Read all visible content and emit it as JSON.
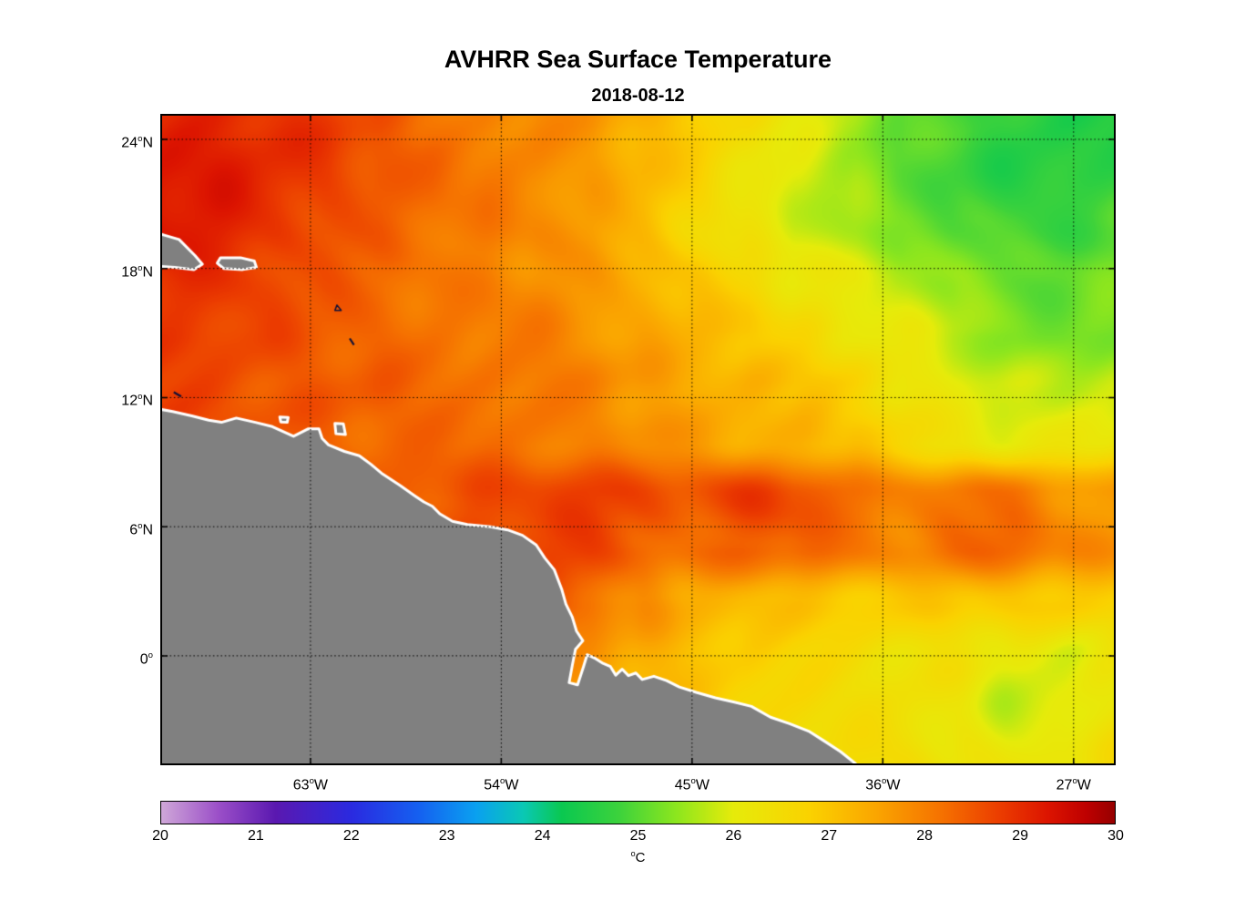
{
  "chart_data": {
    "type": "heatmap",
    "title": "AVHRR Sea Surface Temperature",
    "subtitle": "2018-08-12",
    "deg_symbol": "o",
    "x_axis": {
      "range": [
        -70,
        -25.1
      ],
      "ticks": [
        {
          "lon": -63,
          "value": "63",
          "hemi": "W"
        },
        {
          "lon": -54,
          "value": "54",
          "hemi": "W"
        },
        {
          "lon": -45,
          "value": "45",
          "hemi": "W"
        },
        {
          "lon": -36,
          "value": "36",
          "hemi": "W"
        },
        {
          "lon": -27,
          "value": "27",
          "hemi": "W"
        }
      ]
    },
    "y_axis": {
      "range": [
        -5,
        25.1
      ],
      "ticks": [
        {
          "lat": 24,
          "value": "24",
          "hemi": "N"
        },
        {
          "lat": 18,
          "value": "18",
          "hemi": "N"
        },
        {
          "lat": 12,
          "value": "12",
          "hemi": "N"
        },
        {
          "lat": 6,
          "value": "6",
          "hemi": "N"
        },
        {
          "lat": 0,
          "value": "0",
          "hemi": ""
        }
      ]
    },
    "grid": {
      "style": "dotted",
      "color": "#000000"
    },
    "colorbar": {
      "min": 20,
      "max": 30,
      "ticks": [
        20,
        21,
        22,
        23,
        24,
        25,
        26,
        27,
        28,
        29,
        30
      ],
      "unit_sup": "o",
      "unit_main": "C",
      "stops": [
        [
          20.0,
          "#cfa7d8"
        ],
        [
          20.6,
          "#9b4fc8"
        ],
        [
          21.2,
          "#5a18b0"
        ],
        [
          22.0,
          "#2a2ae0"
        ],
        [
          22.7,
          "#1560f0"
        ],
        [
          23.3,
          "#0aa0f0"
        ],
        [
          23.8,
          "#0ac8b4"
        ],
        [
          24.2,
          "#0ac850"
        ],
        [
          24.8,
          "#3cd23c"
        ],
        [
          25.4,
          "#8ce61e"
        ],
        [
          26.0,
          "#e6eb0a"
        ],
        [
          26.8,
          "#fad200"
        ],
        [
          27.5,
          "#faa500"
        ],
        [
          28.2,
          "#f57000"
        ],
        [
          28.8,
          "#eb3c00"
        ],
        [
          29.3,
          "#dc1400"
        ],
        [
          29.7,
          "#be0000"
        ],
        [
          30.0,
          "#960000"
        ]
      ]
    },
    "sst_grid": {
      "lons": [
        -70,
        -67.5,
        -65,
        -62.5,
        -60,
        -57.5,
        -55,
        -52.5,
        -50,
        -47.5,
        -45,
        -42.5,
        -40,
        -37.5,
        -35,
        -32.5,
        -30,
        -27.5,
        -25
      ],
      "lats": [
        25,
        22.5,
        20,
        17.5,
        15,
        12.5,
        10,
        7.5,
        5,
        2.5,
        0,
        -2.5,
        -5
      ],
      "values": [
        [
          29.0,
          29.0,
          28.9,
          28.8,
          28.5,
          28.2,
          28.0,
          27.8,
          27.6,
          27.3,
          27.0,
          26.6,
          26.1,
          25.6,
          25.2,
          24.9,
          24.7,
          24.6,
          24.7
        ],
        [
          29.1,
          29.1,
          28.9,
          28.8,
          28.6,
          28.3,
          28.1,
          27.9,
          27.6,
          27.3,
          26.9,
          26.5,
          26.0,
          25.5,
          25.0,
          24.8,
          24.6,
          24.6,
          24.7
        ],
        [
          29.3,
          29.1,
          28.9,
          28.7,
          28.5,
          28.3,
          28.1,
          27.9,
          27.6,
          27.2,
          26.8,
          26.3,
          25.9,
          25.5,
          25.2,
          25.0,
          24.8,
          24.8,
          24.9
        ],
        [
          29.0,
          28.9,
          28.8,
          28.6,
          28.4,
          28.2,
          28.0,
          27.8,
          27.6,
          27.4,
          27.1,
          26.6,
          26.2,
          25.9,
          25.6,
          25.3,
          25.1,
          25.1,
          25.2
        ],
        [
          28.8,
          28.8,
          28.7,
          28.5,
          28.4,
          28.2,
          28.0,
          27.9,
          27.7,
          27.5,
          27.3,
          26.9,
          26.5,
          26.2,
          26.0,
          25.7,
          25.4,
          25.3,
          25.4
        ],
        [
          28.6,
          28.6,
          28.5,
          28.5,
          28.4,
          28.2,
          28.1,
          28.0,
          27.9,
          27.7,
          27.5,
          27.3,
          27.0,
          26.7,
          26.4,
          26.1,
          25.9,
          25.8,
          25.9
        ],
        [
          28.6,
          28.5,
          28.5,
          28.4,
          28.3,
          28.2,
          28.2,
          28.1,
          28.0,
          27.9,
          27.7,
          27.5,
          27.3,
          27.0,
          26.7,
          26.4,
          26.2,
          26.1,
          26.2
        ],
        [
          28.6,
          28.6,
          28.6,
          28.5,
          28.5,
          28.5,
          28.6,
          28.7,
          28.9,
          28.8,
          28.7,
          28.8,
          28.6,
          28.2,
          28.0,
          28.2,
          28.1,
          27.7,
          27.4
        ],
        [
          28.7,
          28.7,
          28.7,
          28.7,
          28.7,
          28.7,
          28.7,
          28.8,
          28.8,
          28.5,
          28.2,
          28.3,
          28.3,
          28.0,
          27.9,
          28.2,
          28.3,
          27.9,
          27.6
        ],
        [
          28.6,
          28.6,
          28.6,
          28.6,
          28.6,
          28.6,
          28.6,
          28.5,
          28.3,
          27.8,
          27.3,
          27.0,
          26.9,
          26.9,
          26.9,
          27.0,
          27.0,
          26.9,
          26.9
        ],
        [
          28.5,
          28.5,
          28.5,
          28.5,
          28.5,
          28.4,
          28.2,
          28.0,
          27.7,
          27.4,
          27.1,
          26.8,
          26.6,
          26.5,
          26.5,
          26.5,
          26.1,
          25.9,
          26.3
        ],
        [
          28.4,
          28.4,
          28.4,
          28.4,
          28.3,
          28.2,
          28.0,
          27.8,
          27.6,
          27.3,
          27.0,
          26.8,
          26.6,
          26.5,
          26.5,
          26.3,
          25.8,
          25.8,
          26.2
        ],
        [
          28.3,
          28.3,
          28.3,
          28.3,
          28.2,
          28.1,
          28.0,
          27.8,
          27.6,
          27.3,
          27.0,
          26.8,
          26.7,
          26.6,
          26.6,
          26.3,
          26.0,
          26.2,
          26.4
        ]
      ]
    },
    "land": {
      "fill": "#808080",
      "stroke": "#ffffff",
      "mainland": [
        [
          -70.6,
          11.55
        ],
        [
          -69.5,
          11.35
        ],
        [
          -68.6,
          11.15
        ],
        [
          -67.8,
          10.95
        ],
        [
          -67.2,
          10.85
        ],
        [
          -66.5,
          11.05
        ],
        [
          -65.6,
          10.85
        ],
        [
          -64.8,
          10.65
        ],
        [
          -63.8,
          10.2
        ],
        [
          -63.1,
          10.55
        ],
        [
          -62.6,
          10.55
        ],
        [
          -62.45,
          10.1
        ],
        [
          -62.15,
          9.8
        ],
        [
          -61.4,
          9.5
        ],
        [
          -60.7,
          9.3
        ],
        [
          -60.15,
          8.9
        ],
        [
          -59.6,
          8.45
        ],
        [
          -58.75,
          7.9
        ],
        [
          -58.1,
          7.45
        ],
        [
          -57.65,
          7.15
        ],
        [
          -57.25,
          6.95
        ],
        [
          -56.9,
          6.6
        ],
        [
          -56.3,
          6.25
        ],
        [
          -55.6,
          6.1
        ],
        [
          -54.5,
          6.0
        ],
        [
          -53.7,
          5.85
        ],
        [
          -53.0,
          5.6
        ],
        [
          -52.35,
          5.15
        ],
        [
          -51.95,
          4.55
        ],
        [
          -51.5,
          4.0
        ],
        [
          -51.15,
          3.1
        ],
        [
          -50.95,
          2.4
        ],
        [
          -50.65,
          1.8
        ],
        [
          -50.45,
          1.15
        ],
        [
          -50.15,
          0.7
        ],
        [
          -50.5,
          0.3
        ],
        [
          -50.65,
          -0.45
        ],
        [
          -50.8,
          -1.25
        ],
        [
          -50.4,
          -1.35
        ],
        [
          -50.12,
          -0.5
        ],
        [
          -49.95,
          0.05
        ],
        [
          -49.6,
          -0.1
        ],
        [
          -49.2,
          -0.35
        ],
        [
          -48.85,
          -0.5
        ],
        [
          -48.6,
          -0.9
        ],
        [
          -48.3,
          -0.62
        ],
        [
          -48.0,
          -0.92
        ],
        [
          -47.65,
          -0.8
        ],
        [
          -47.35,
          -1.1
        ],
        [
          -46.8,
          -0.95
        ],
        [
          -46.2,
          -1.15
        ],
        [
          -45.6,
          -1.45
        ],
        [
          -44.8,
          -1.7
        ],
        [
          -43.9,
          -1.95
        ],
        [
          -43.0,
          -2.15
        ],
        [
          -42.2,
          -2.35
        ],
        [
          -41.3,
          -2.85
        ],
        [
          -40.4,
          -3.15
        ],
        [
          -39.5,
          -3.5
        ],
        [
          -38.7,
          -4.0
        ],
        [
          -38.0,
          -4.45
        ],
        [
          -37.3,
          -5.0
        ],
        [
          -36.9,
          -5.5
        ],
        [
          -70.6,
          -5.5
        ]
      ],
      "islands": [
        [
          [
            -70.6,
            19.75
          ],
          [
            -69.9,
            19.55
          ],
          [
            -69.2,
            19.35
          ],
          [
            -68.45,
            18.6
          ],
          [
            -68.1,
            18.2
          ],
          [
            -68.5,
            17.95
          ],
          [
            -69.4,
            18.05
          ],
          [
            -70.1,
            18.1
          ],
          [
            -70.6,
            18.25
          ]
        ],
        [
          [
            -67.25,
            18.5
          ],
          [
            -66.3,
            18.5
          ],
          [
            -65.65,
            18.35
          ],
          [
            -65.55,
            18.05
          ],
          [
            -66.2,
            17.95
          ],
          [
            -67.1,
            18.0
          ],
          [
            -67.4,
            18.25
          ]
        ],
        [
          [
            -61.85,
            10.8
          ],
          [
            -61.45,
            10.78
          ],
          [
            -61.35,
            10.28
          ],
          [
            -61.8,
            10.32
          ]
        ],
        [
          [
            -64.45,
            11.1
          ],
          [
            -64.05,
            11.08
          ],
          [
            -64.1,
            10.85
          ],
          [
            -64.4,
            10.87
          ]
        ]
      ],
      "specks": [
        {
          "type": "poly",
          "pts": [
            [
              -61.75,
              16.3
            ],
            [
              -61.55,
              16.05
            ],
            [
              -61.85,
              16.05
            ]
          ]
        },
        {
          "type": "line",
          "pts": [
            [
              -61.15,
              14.75
            ],
            [
              -60.95,
              14.45
            ]
          ]
        },
        {
          "type": "line",
          "pts": [
            [
              -69.45,
              12.25
            ],
            [
              -69.1,
              12.05
            ]
          ]
        }
      ]
    }
  }
}
